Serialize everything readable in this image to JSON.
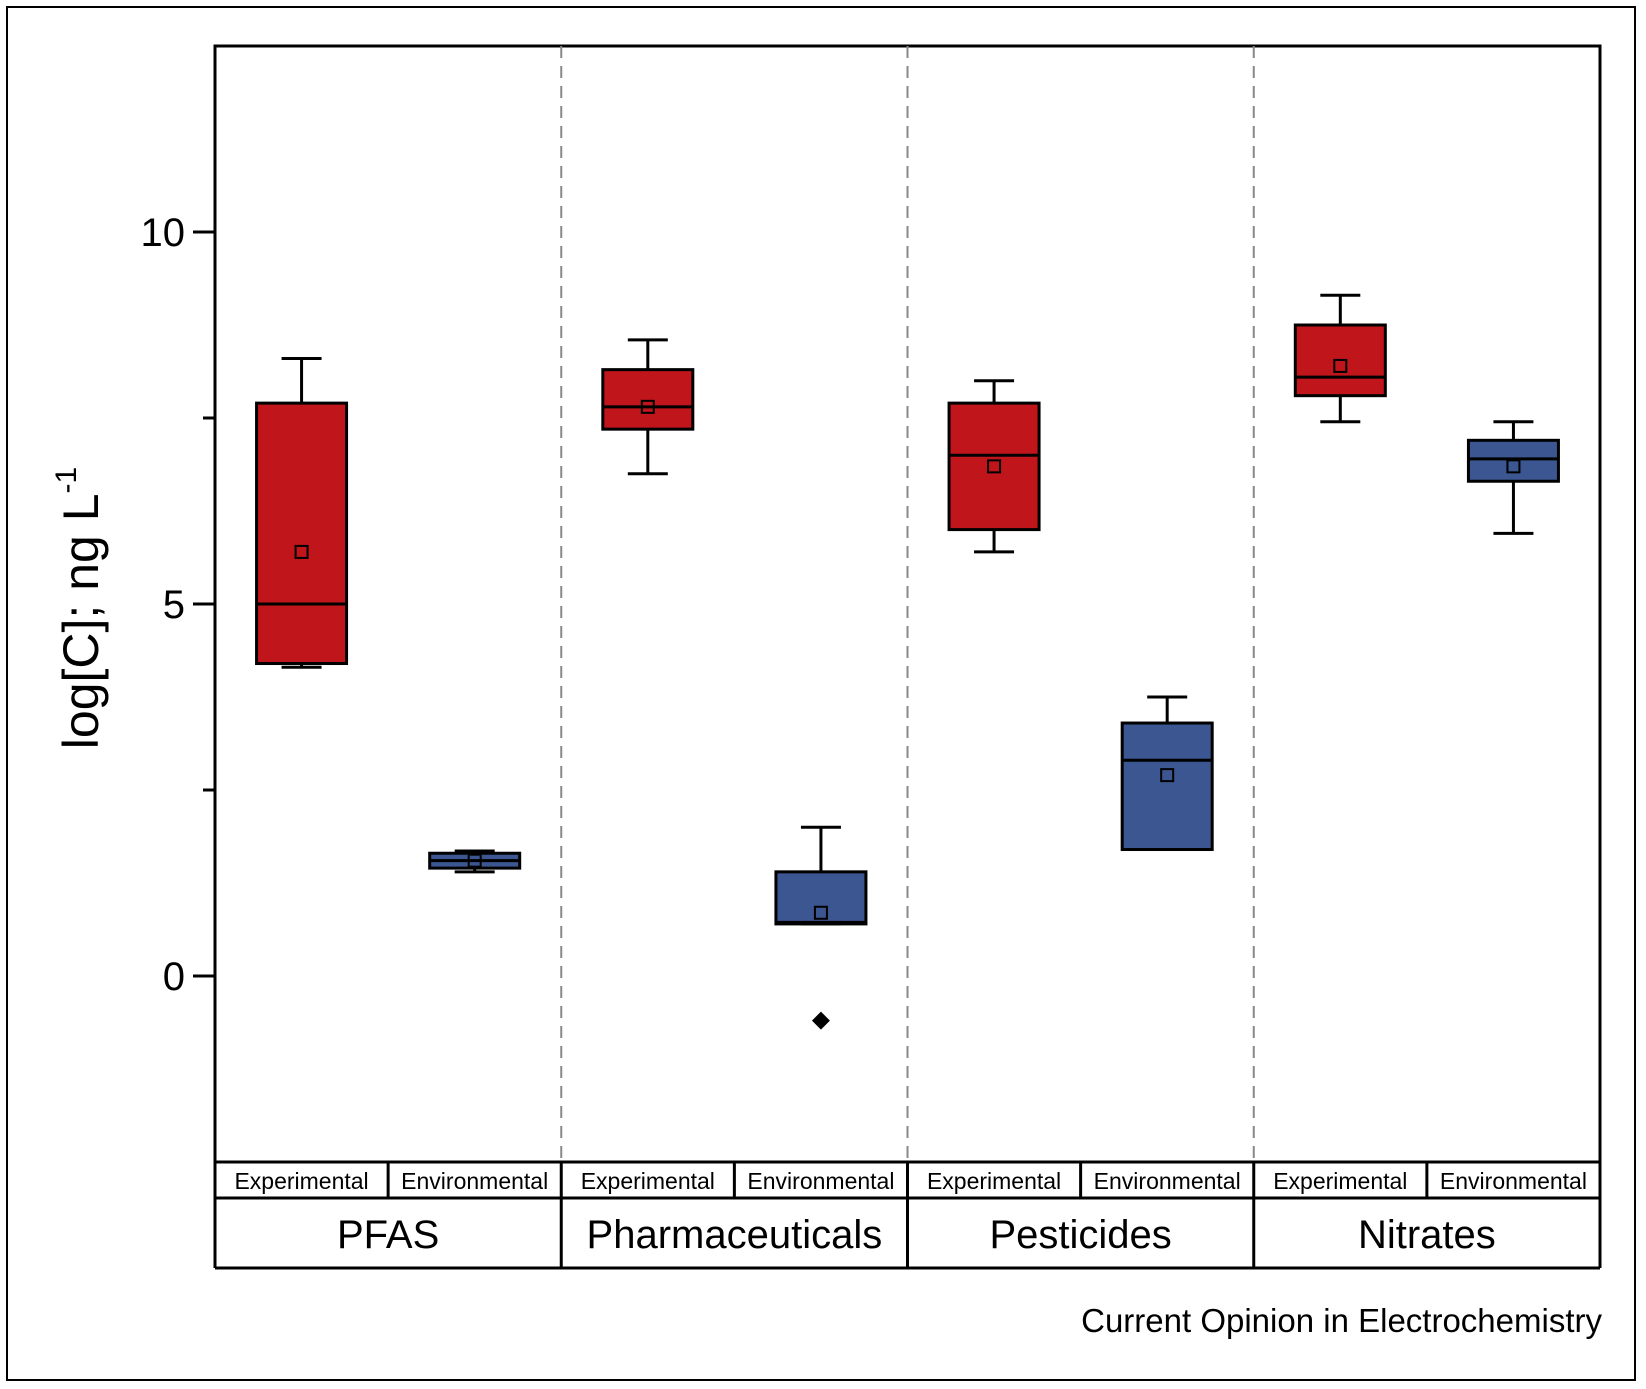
{
  "chart_data": {
    "type": "box",
    "ylabel": "log[C]; ng L",
    "ylabel_superscript": "-1",
    "ylim": [
      -2.5,
      12.5
    ],
    "yticks": [
      0,
      5,
      10
    ],
    "ytick_labels": [
      "0",
      "5",
      "10"
    ],
    "grid": false,
    "groups": [
      "PFAS",
      "Pharmaceuticals",
      "Pesticides",
      "Nitrates"
    ],
    "subcategories": [
      "Experimental",
      "Environmental"
    ],
    "colors": {
      "Experimental": "#c0161b",
      "Environmental": "#3b5691"
    },
    "boxes": [
      {
        "group": "PFAS",
        "sub": "Experimental",
        "whisker_low": 4.15,
        "q1": 4.2,
        "median": 5.0,
        "q3": 7.7,
        "whisker_high": 8.3,
        "mean": 5.7
      },
      {
        "group": "PFAS",
        "sub": "Environmental",
        "whisker_low": 1.4,
        "q1": 1.45,
        "median": 1.55,
        "q3": 1.65,
        "whisker_high": 1.68,
        "mean": 1.55
      },
      {
        "group": "Pharmaceuticals",
        "sub": "Experimental",
        "whisker_low": 6.75,
        "q1": 7.35,
        "median": 7.65,
        "q3": 8.15,
        "whisker_high": 8.55,
        "mean": 7.65
      },
      {
        "group": "Pharmaceuticals",
        "sub": "Environmental",
        "whisker_low": 0.7,
        "q1": 0.7,
        "median": 0.72,
        "q3": 1.4,
        "whisker_high": 2.0,
        "mean": 0.85,
        "outliers": [
          -0.6
        ]
      },
      {
        "group": "Pesticides",
        "sub": "Experimental",
        "whisker_low": 5.7,
        "q1": 6.0,
        "median": 7.0,
        "q3": 7.7,
        "whisker_high": 8.0,
        "mean": 6.85
      },
      {
        "group": "Pesticides",
        "sub": "Environmental",
        "whisker_low": 1.7,
        "q1": 1.7,
        "median": 2.9,
        "q3": 3.4,
        "whisker_high": 3.75,
        "mean": 2.7
      },
      {
        "group": "Nitrates",
        "sub": "Experimental",
        "whisker_low": 7.45,
        "q1": 7.8,
        "median": 8.05,
        "q3": 8.75,
        "whisker_high": 9.15,
        "mean": 8.2
      },
      {
        "group": "Nitrates",
        "sub": "Environmental",
        "whisker_low": 5.95,
        "q1": 6.65,
        "median": 6.95,
        "q3": 7.2,
        "whisker_high": 7.45,
        "mean": 6.85
      }
    ]
  },
  "credit": "Current Opinion in Electrochemistry"
}
